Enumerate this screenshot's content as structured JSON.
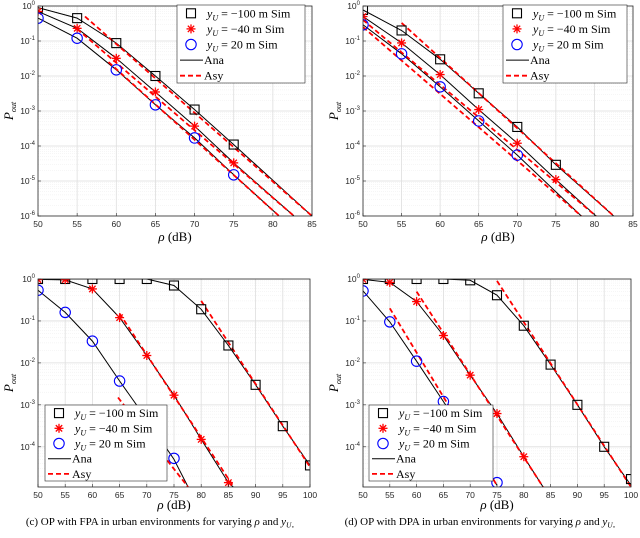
{
  "chart_data": [
    {
      "type": "line",
      "xlabel": "ρ (dB)",
      "ylabel": "P_out",
      "yscale": "log",
      "xlim": [
        50,
        85
      ],
      "ylim": [
        1e-06,
        1
      ],
      "xticks": [
        50,
        55,
        60,
        65,
        70,
        75,
        80,
        85
      ],
      "yticks_exp": [
        0,
        -1,
        -2,
        -3,
        -4,
        -5,
        -6
      ],
      "grid": true,
      "legend_placement": "top-right",
      "caption": "",
      "legend": [
        "y_U = −100 m Sim",
        "y_U = −40 m Sim",
        "y_U = 20 m Sim",
        "Ana",
        "Asy"
      ],
      "series": [
        {
          "name": "y_U = −100 m Sim",
          "marker": "square",
          "color": "#000000",
          "x": [
            50,
            55,
            60,
            65,
            70,
            75
          ],
          "y": [
            0.9,
            0.45,
            0.087,
            0.01,
            0.0011,
            0.00011
          ]
        },
        {
          "name": "y_U = −40 m Sim",
          "marker": "star",
          "color": "#ff0000",
          "x": [
            50,
            55,
            60,
            65,
            70,
            75
          ],
          "y": [
            0.7,
            0.23,
            0.032,
            0.0035,
            0.00037,
            3.3e-05
          ]
        },
        {
          "name": "y_U = 20 m Sim",
          "marker": "circle",
          "color": "#0000ff",
          "x": [
            50,
            55,
            60,
            65,
            70,
            75
          ],
          "y": [
            0.45,
            0.12,
            0.015,
            0.0015,
            0.00017,
            1.5e-05
          ]
        },
        {
          "name": "Ana",
          "color": "#000000",
          "curves": [
            [
              [
                50,
                0.9
              ],
              [
                55,
                0.45
              ],
              [
                60,
                0.087
              ],
              [
                65,
                0.01
              ],
              [
                70,
                0.0011
              ],
              [
                75,
                0.00011
              ],
              [
                85,
                1e-06
              ]
            ],
            [
              [
                50,
                0.7
              ],
              [
                55,
                0.23
              ],
              [
                60,
                0.032
              ],
              [
                65,
                0.0035
              ],
              [
                70,
                0.00037
              ],
              [
                75,
                3.3e-05
              ],
              [
                82.7,
                1e-06
              ]
            ],
            [
              [
                50,
                0.45
              ],
              [
                55,
                0.12
              ],
              [
                60,
                0.015
              ],
              [
                65,
                0.0015
              ],
              [
                70,
                0.00017
              ],
              [
                75,
                1.5e-05
              ],
              [
                80.8,
                1e-06
              ]
            ]
          ]
        },
        {
          "name": "Asy",
          "color": "#ff0000",
          "curves": [
            [
              [
                56,
                0.5
              ],
              [
                85,
                1e-06
              ]
            ],
            [
              [
                55,
                0.22
              ],
              [
                82.7,
                1e-06
              ]
            ],
            [
              [
                59,
                0.025
              ],
              [
                80.8,
                1e-06
              ]
            ]
          ]
        }
      ]
    },
    {
      "type": "line",
      "xlabel": "ρ (dB)",
      "ylabel": "P_out",
      "yscale": "log",
      "xlim": [
        50,
        85
      ],
      "ylim": [
        1e-06,
        1
      ],
      "xticks": [
        50,
        55,
        60,
        65,
        70,
        75,
        80,
        85
      ],
      "yticks_exp": [
        0,
        -1,
        -2,
        -3,
        -4,
        -5,
        -6
      ],
      "grid": true,
      "legend_placement": "top-right",
      "caption": "",
      "legend": [
        "y_U = −100 m Sim",
        "y_U = −40 m Sim",
        "y_U = 20 m Sim",
        "Ana",
        "Asy"
      ],
      "series": [
        {
          "name": "y_U = −100 m Sim",
          "marker": "square",
          "color": "#000000",
          "x": [
            50,
            55,
            60,
            65,
            70,
            75
          ],
          "y": [
            0.77,
            0.2,
            0.03,
            0.0032,
            0.00035,
            2.9e-05
          ]
        },
        {
          "name": "y_U = −40 m Sim",
          "marker": "star",
          "color": "#ff0000",
          "x": [
            50,
            55,
            60,
            65,
            70,
            75
          ],
          "y": [
            0.5,
            0.088,
            0.011,
            0.0011,
            0.00012,
            1.1e-05
          ]
        },
        {
          "name": "y_U = 20 m Sim",
          "marker": "circle",
          "color": "#0000ff",
          "x": [
            50,
            55,
            60,
            65,
            70
          ],
          "y": [
            0.29,
            0.043,
            0.0049,
            0.00052,
            5.5e-05
          ]
        },
        {
          "name": "Ana",
          "color": "#000000",
          "curves": [
            [
              [
                50,
                0.77
              ],
              [
                55,
                0.2
              ],
              [
                60,
                0.03
              ],
              [
                65,
                0.0032
              ],
              [
                70,
                0.00035
              ],
              [
                75,
                2.9e-05
              ],
              [
                82.5,
                1e-06
              ]
            ],
            [
              [
                50,
                0.5
              ],
              [
                55,
                0.088
              ],
              [
                60,
                0.011
              ],
              [
                65,
                0.0011
              ],
              [
                70,
                0.00012
              ],
              [
                75,
                1.1e-05
              ],
              [
                80.2,
                1e-06
              ]
            ],
            [
              [
                50,
                0.29
              ],
              [
                55,
                0.043
              ],
              [
                60,
                0.0049
              ],
              [
                65,
                0.00052
              ],
              [
                70,
                5.5e-05
              ],
              [
                78.3,
                1e-06
              ]
            ]
          ]
        },
        {
          "name": "Asy",
          "color": "#ff0000",
          "curves": [
            [
              [
                55,
                0.33
              ],
              [
                82.5,
                1e-06
              ]
            ],
            [
              [
                50,
                0.4
              ],
              [
                80.2,
                1e-06
              ]
            ],
            [
              [
                50,
                0.25
              ],
              [
                78.3,
                1e-06
              ]
            ]
          ]
        }
      ]
    },
    {
      "type": "line",
      "xlabel": "ρ (dB)",
      "ylabel": "P_out",
      "yscale": "log",
      "xlim": [
        50,
        100
      ],
      "ylim": [
        1.1e-05,
        1
      ],
      "xticks": [
        50,
        55,
        60,
        65,
        70,
        75,
        80,
        85,
        90,
        95,
        100
      ],
      "yticks_exp": [
        0,
        -1,
        -2,
        -3,
        -4
      ],
      "grid": true,
      "legend_placement": "bottom-left",
      "caption": "(c) OP with FPA in urban environments for varying ρ and y_U.",
      "legend": [
        "y_U = −100 m Sim",
        "y_U = −40 m Sim",
        "y_U = 20 m Sim",
        "Ana",
        "Asy"
      ],
      "series": [
        {
          "name": "y_U = −100 m Sim",
          "marker": "square",
          "color": "#000000",
          "x": [
            50,
            55,
            60,
            65,
            70,
            75,
            80,
            85,
            90,
            95,
            100
          ],
          "y": [
            1,
            1,
            1,
            1,
            1,
            0.7,
            0.19,
            0.026,
            0.003,
            0.00031,
            3.6e-05
          ]
        },
        {
          "name": "y_U = −40 m Sim",
          "marker": "star",
          "color": "#ff0000",
          "x": [
            50,
            55,
            60,
            65,
            70,
            75,
            80,
            85
          ],
          "y": [
            0.97,
            0.97,
            0.58,
            0.12,
            0.015,
            0.0017,
            0.00015,
            1.4e-05
          ]
        },
        {
          "name": "y_U = 20 m Sim",
          "marker": "circle",
          "color": "#0000ff",
          "x": [
            50,
            55,
            60,
            65,
            70,
            75
          ],
          "y": [
            0.54,
            0.16,
            0.033,
            0.0037,
            0.00045,
            5.3e-05
          ]
        },
        {
          "name": "Ana",
          "color": "#000000",
          "curves": [
            [
              [
                50,
                1
              ],
              [
                55,
                1
              ],
              [
                60,
                1
              ],
              [
                65,
                1
              ],
              [
                70,
                1
              ],
              [
                75,
                0.7
              ],
              [
                80,
                0.19
              ],
              [
                85,
                0.026
              ],
              [
                90,
                0.003
              ],
              [
                95,
                0.00031
              ],
              [
                100,
                3.6e-05
              ]
            ],
            [
              [
                50,
                0.98
              ],
              [
                55,
                0.95
              ],
              [
                60,
                0.58
              ],
              [
                65,
                0.12
              ],
              [
                70,
                0.015
              ],
              [
                75,
                0.0017
              ],
              [
                80,
                0.00015
              ],
              [
                85,
                1.4e-05
              ],
              [
                85.9,
                1.1e-05
              ]
            ],
            [
              [
                50,
                0.54
              ],
              [
                55,
                0.16
              ],
              [
                60,
                0.033
              ],
              [
                65,
                0.0037
              ],
              [
                70,
                0.00045
              ],
              [
                75,
                5e-05
              ],
              [
                77.6,
                1.1e-05
              ]
            ]
          ]
        },
        {
          "name": "Asy",
          "color": "#ff0000",
          "curves": [
            [
              [
                80,
                0.3
              ],
              [
                100,
                3.3e-05
              ]
            ],
            [
              [
                65,
                0.15
              ],
              [
                86,
                1.1e-05
              ]
            ],
            [
              [
                64.7,
                0.0015
              ],
              [
                77.6,
                1.1e-05
              ]
            ]
          ]
        }
      ]
    },
    {
      "type": "line",
      "xlabel": "ρ (dB)",
      "ylabel": "P_out",
      "yscale": "log",
      "xlim": [
        50,
        100
      ],
      "ylim": [
        1.1e-05,
        1
      ],
      "xticks": [
        50,
        55,
        60,
        65,
        70,
        75,
        80,
        85,
        90,
        95,
        100
      ],
      "yticks_exp": [
        0,
        -1,
        -2,
        -3,
        -4
      ],
      "grid": true,
      "legend_placement": "bottom-left",
      "caption": "(d) OP with DPA in urban environments for varying ρ and y_U.",
      "legend": [
        "y_U = −100 m Sim",
        "y_U = −40 m Sim",
        "y_U = 20 m Sim",
        "Ana",
        "Asy"
      ],
      "series": [
        {
          "name": "y_U = −100 m Sim",
          "marker": "square",
          "color": "#000000",
          "x": [
            50,
            55,
            60,
            65,
            70,
            75,
            80,
            85,
            90,
            95,
            100
          ],
          "y": [
            1,
            1,
            1,
            1,
            0.93,
            0.41,
            0.077,
            0.0091,
            0.001,
            0.0001,
            1.7e-05
          ]
        },
        {
          "name": "y_U = −40 m Sim",
          "marker": "star",
          "color": "#ff0000",
          "x": [
            50,
            55,
            60,
            65,
            70,
            75,
            80
          ],
          "y": [
            0.98,
            0.83,
            0.29,
            0.045,
            0.0051,
            0.00062,
            5.8e-05
          ]
        },
        {
          "name": "y_U = 20 m Sim",
          "marker": "circle",
          "color": "#0000ff",
          "x": [
            50,
            55,
            60,
            65,
            70,
            75
          ],
          "y": [
            0.52,
            0.095,
            0.011,
            0.0012,
            0.00013,
            1.4e-05
          ]
        },
        {
          "name": "Ana",
          "color": "#000000",
          "curves": [
            [
              [
                50,
                1
              ],
              [
                55,
                1
              ],
              [
                60,
                1
              ],
              [
                65,
                1
              ],
              [
                70,
                0.93
              ],
              [
                75,
                0.41
              ],
              [
                80,
                0.077
              ],
              [
                85,
                0.0091
              ],
              [
                90,
                0.001
              ],
              [
                95,
                0.0001
              ],
              [
                100,
                1.2e-05
              ]
            ],
            [
              [
                50,
                0.98
              ],
              [
                55,
                0.83
              ],
              [
                60,
                0.29
              ],
              [
                65,
                0.045
              ],
              [
                70,
                0.0051
              ],
              [
                75,
                0.00062
              ],
              [
                80,
                5.8e-05
              ],
              [
                83.6,
                1.1e-05
              ]
            ],
            [
              [
                50,
                0.52
              ],
              [
                55,
                0.095
              ],
              [
                60,
                0.011
              ],
              [
                65,
                0.0012
              ],
              [
                70,
                0.00013
              ],
              [
                75,
                1.2e-05
              ]
            ]
          ]
        },
        {
          "name": "Asy",
          "color": "#ff0000",
          "curves": [
            [
              [
                75,
                0.9
              ],
              [
                100,
                1.1e-05
              ]
            ],
            [
              [
                60,
                0.5
              ],
              [
                83.6,
                1.1e-05
              ]
            ],
            [
              [
                55,
                0.2
              ],
              [
                75,
                1.2e-05
              ]
            ]
          ]
        }
      ]
    }
  ]
}
